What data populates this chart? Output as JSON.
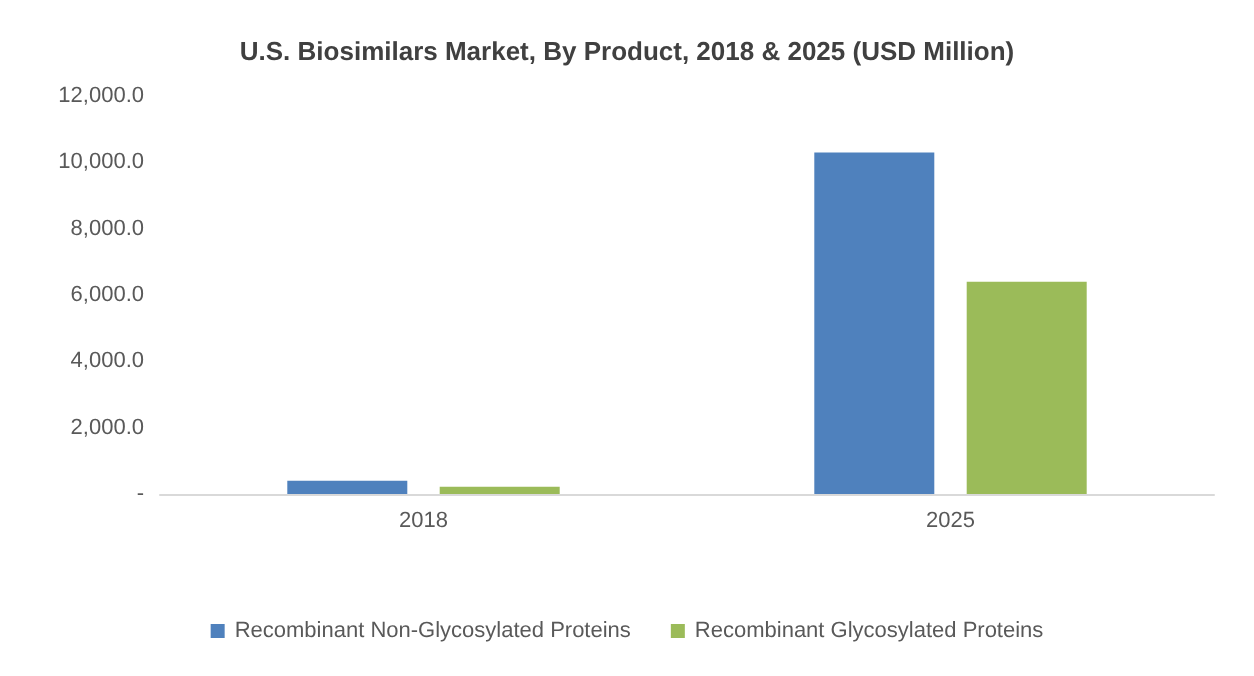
{
  "chart_data": {
    "type": "bar",
    "title": "U.S. Biosimilars Market, By Product, 2018 & 2025 (USD Million)",
    "categories": [
      "2018",
      "2025"
    ],
    "series": [
      {
        "name": "Recombinant Non-Glycosylated Proteins",
        "color": "#4f81bd",
        "values": [
          400,
          10300
        ]
      },
      {
        "name": "Recombinant Glycosylated Proteins",
        "color": "#9bbb59",
        "values": [
          220,
          6400
        ]
      }
    ],
    "ylim": [
      0,
      12000
    ],
    "yticks": [
      {
        "value": 0,
        "label": "-"
      },
      {
        "value": 2000,
        "label": "2,000.0"
      },
      {
        "value": 4000,
        "label": "4,000.0"
      },
      {
        "value": 6000,
        "label": "6,000.0"
      },
      {
        "value": 8000,
        "label": "8,000.0"
      },
      {
        "value": 10000,
        "label": "10,000.0"
      },
      {
        "value": 12000,
        "label": "12,000.0"
      }
    ],
    "grid": false,
    "legend": "bottom"
  }
}
